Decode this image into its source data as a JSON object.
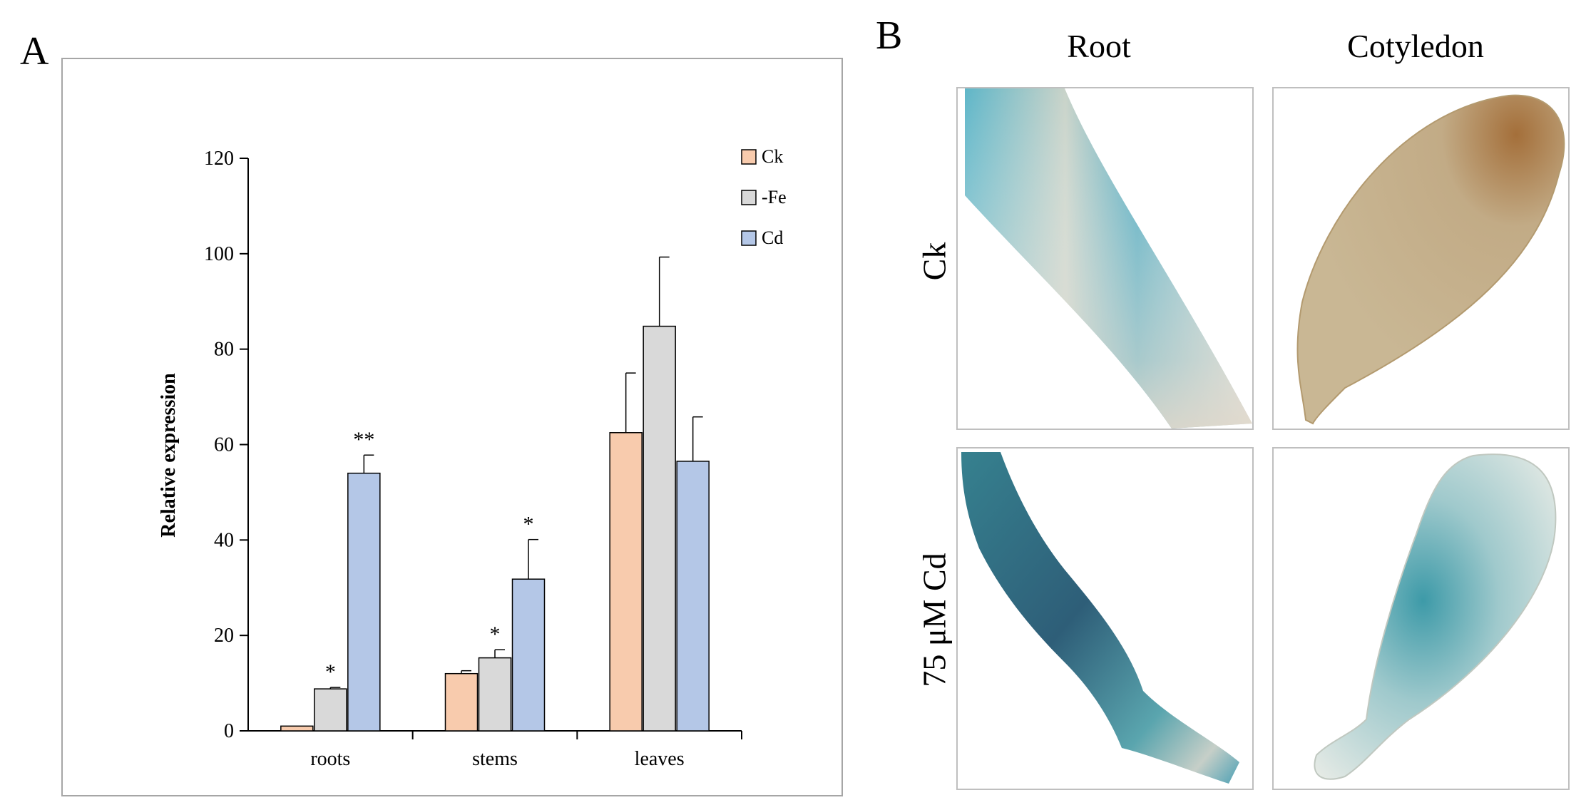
{
  "panel_a": {
    "letter": "A"
  },
  "panel_b": {
    "letter": "B",
    "columns": [
      "Root",
      "Cotyledon"
    ],
    "rows": [
      "Ck",
      "75 μM Cd"
    ]
  },
  "chart_data": {
    "type": "bar",
    "title": "",
    "xlabel": "",
    "ylabel": "Relative expression",
    "ylim": [
      0,
      120
    ],
    "yticks": [
      0,
      20,
      40,
      60,
      80,
      100,
      120
    ],
    "categories": [
      "roots",
      "stems",
      "leaves"
    ],
    "legend_position": "top-right",
    "series": [
      {
        "name": "Ck",
        "color": "#f8cbad",
        "values": [
          1,
          12,
          62.5
        ],
        "errors": [
          0,
          0.6,
          12.5
        ],
        "annotations": [
          "",
          "",
          ""
        ]
      },
      {
        "name": "-Fe",
        "color": "#d9d9d9",
        "values": [
          8.8,
          15.3,
          84.8
        ],
        "errors": [
          0.3,
          1.7,
          14.5
        ],
        "annotations": [
          "*",
          "*",
          ""
        ]
      },
      {
        "name": "Cd",
        "color": "#b4c7e7",
        "values": [
          54,
          31.8,
          56.5
        ],
        "errors": [
          3.8,
          8.3,
          9.3
        ],
        "annotations": [
          "**",
          "*",
          ""
        ]
      }
    ]
  },
  "colors": {
    "gus_blue": "#3f9bb0",
    "gus_dark": "#2e6d82",
    "tissue_tan": "#c8b795",
    "tissue_brown": "#a07a45",
    "frame": "#bfbfbf"
  }
}
